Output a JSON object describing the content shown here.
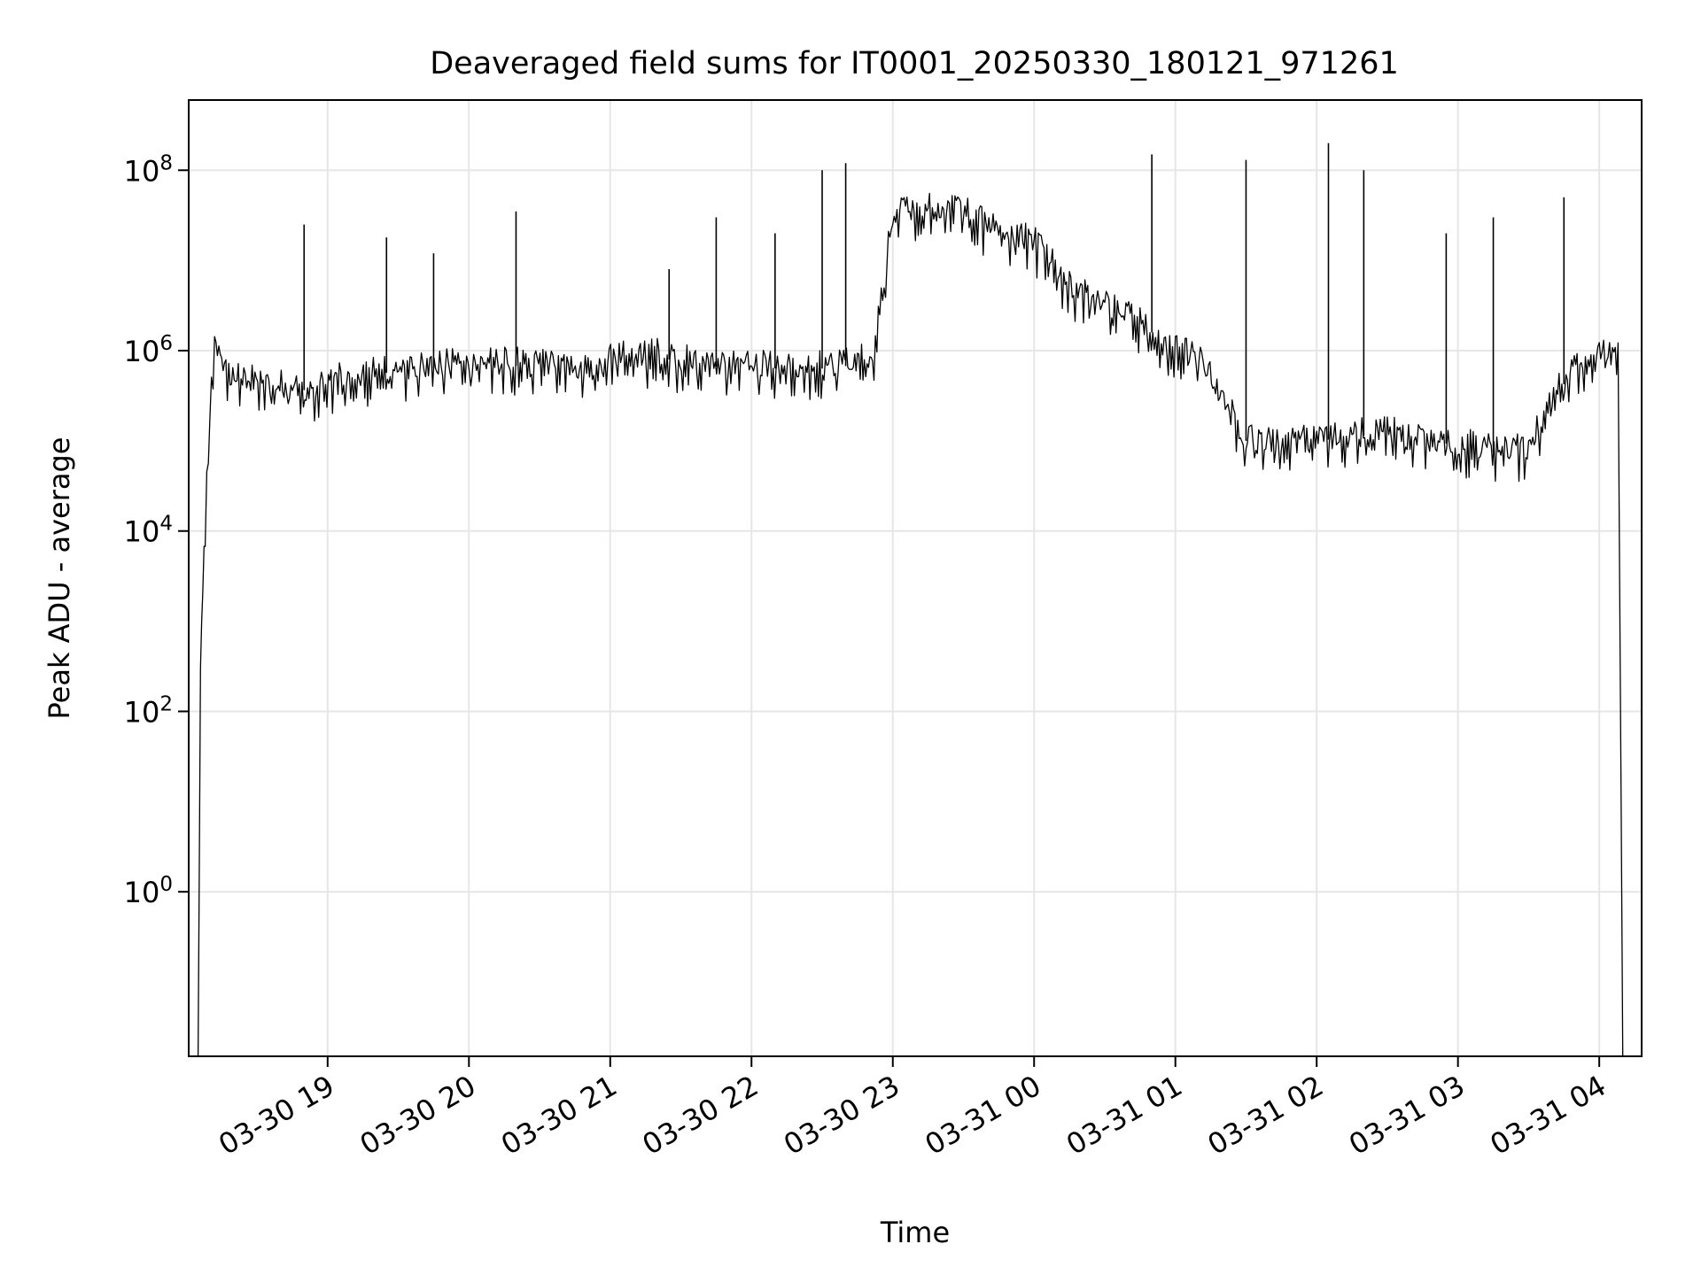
{
  "chart_data": {
    "type": "line",
    "title": "Deaveraged field sums for IT0001_20250330_180121_971261",
    "xlabel": "Time",
    "ylabel": "Peak ADU - average",
    "yscale": "log",
    "ylim": [
      0.015,
      600000000
    ],
    "xlim": [
      "2025-03-30 18:01",
      "2025-03-31 04:18"
    ],
    "grid": true,
    "x_ticks": [
      {
        "value": "2025-03-30 19:00",
        "label": "03-30 19"
      },
      {
        "value": "2025-03-30 20:00",
        "label": "03-30 20"
      },
      {
        "value": "2025-03-30 21:00",
        "label": "03-30 21"
      },
      {
        "value": "2025-03-30 22:00",
        "label": "03-30 22"
      },
      {
        "value": "2025-03-30 23:00",
        "label": "03-30 23"
      },
      {
        "value": "2025-03-31 00:00",
        "label": "03-31 00"
      },
      {
        "value": "2025-03-31 01:00",
        "label": "03-31 01"
      },
      {
        "value": "2025-03-31 02:00",
        "label": "03-31 02"
      },
      {
        "value": "2025-03-31 03:00",
        "label": "03-31 03"
      },
      {
        "value": "2025-03-31 04:00",
        "label": "03-31 04"
      }
    ],
    "y_ticks": [
      {
        "value": 1,
        "base": "10",
        "exp": "0"
      },
      {
        "value": 100,
        "base": "10",
        "exp": "2"
      },
      {
        "value": 10000,
        "base": "10",
        "exp": "4"
      },
      {
        "value": 1000000,
        "base": "10",
        "exp": "6"
      },
      {
        "value": 100000000,
        "base": "10",
        "exp": "8"
      }
    ],
    "series_color": "#000000",
    "series": [
      {
        "x": [
          "2025-03-30 18:05",
          "2025-03-30 18:06",
          "2025-03-30 18:07",
          "2025-03-30 18:08",
          "2025-03-30 18:10",
          "2025-03-30 18:12",
          "2025-03-30 18:15",
          "2025-03-30 18:18",
          "2025-03-30 18:25",
          "2025-03-30 18:35",
          "2025-03-30 18:45",
          "2025-03-30 18:55",
          "2025-03-30 19:05",
          "2025-03-30 19:20",
          "2025-03-30 19:35",
          "2025-03-30 19:50",
          "2025-03-30 20:05",
          "2025-03-30 20:20",
          "2025-03-30 20:35",
          "2025-03-30 20:50",
          "2025-03-30 21:05",
          "2025-03-30 21:20",
          "2025-03-30 21:35",
          "2025-03-30 21:50",
          "2025-03-30 22:05",
          "2025-03-30 22:20",
          "2025-03-30 22:35",
          "2025-03-30 22:45",
          "2025-03-30 22:52",
          "2025-03-30 23:00",
          "2025-03-30 23:15",
          "2025-03-30 23:30",
          "2025-03-30 23:45",
          "2025-03-31 00:00",
          "2025-03-31 00:15",
          "2025-03-31 00:30",
          "2025-03-31 00:45",
          "2025-03-31 01:00",
          "2025-03-31 01:10",
          "2025-03-31 01:20",
          "2025-03-31 01:30",
          "2025-03-31 01:45",
          "2025-03-31 02:00",
          "2025-03-31 02:15",
          "2025-03-31 02:30",
          "2025-03-31 02:45",
          "2025-03-31 03:00",
          "2025-03-31 03:10",
          "2025-03-31 03:20",
          "2025-03-31 03:30",
          "2025-03-31 03:40",
          "2025-03-31 03:50",
          "2025-03-31 04:00",
          "2025-03-31 04:05",
          "2025-03-31 04:08",
          "2025-03-31 04:10"
        ],
        "values": [
          0.015,
          300,
          2000,
          15000,
          200000,
          1000000,
          700000,
          500000,
          450000,
          400000,
          380000,
          350000,
          500000,
          550000,
          600000,
          650000,
          700000,
          680000,
          650000,
          600000,
          800000,
          850000,
          700000,
          650000,
          650000,
          600000,
          650000,
          700000,
          1000000,
          30000000,
          40000000,
          35000000,
          20000000,
          15000000,
          5000000,
          3000000,
          2000000,
          1000000,
          800000,
          300000,
          100000,
          90000,
          100000,
          110000,
          120000,
          100000,
          90000,
          80000,
          70000,
          80000,
          300000,
          600000,
          800000,
          900000,
          1000000,
          0.015
        ],
        "spikes": [
          {
            "x": "2025-03-30 18:50",
            "value": 25000000
          },
          {
            "x": "2025-03-30 19:25",
            "value": 18000000
          },
          {
            "x": "2025-03-30 19:45",
            "value": 12000000
          },
          {
            "x": "2025-03-30 20:20",
            "value": 35000000
          },
          {
            "x": "2025-03-30 21:25",
            "value": 8000000
          },
          {
            "x": "2025-03-30 21:45",
            "value": 30000000
          },
          {
            "x": "2025-03-30 22:10",
            "value": 20000000
          },
          {
            "x": "2025-03-30 22:30",
            "value": 100000000
          },
          {
            "x": "2025-03-30 22:40",
            "value": 120000000
          },
          {
            "x": "2025-03-31 00:50",
            "value": 150000000
          },
          {
            "x": "2025-03-31 01:30",
            "value": 130000000
          },
          {
            "x": "2025-03-31 02:05",
            "value": 200000000
          },
          {
            "x": "2025-03-31 02:20",
            "value": 100000000
          },
          {
            "x": "2025-03-31 02:55",
            "value": 20000000
          },
          {
            "x": "2025-03-31 03:15",
            "value": 30000000
          },
          {
            "x": "2025-03-31 03:45",
            "value": 50000000
          }
        ]
      }
    ]
  }
}
